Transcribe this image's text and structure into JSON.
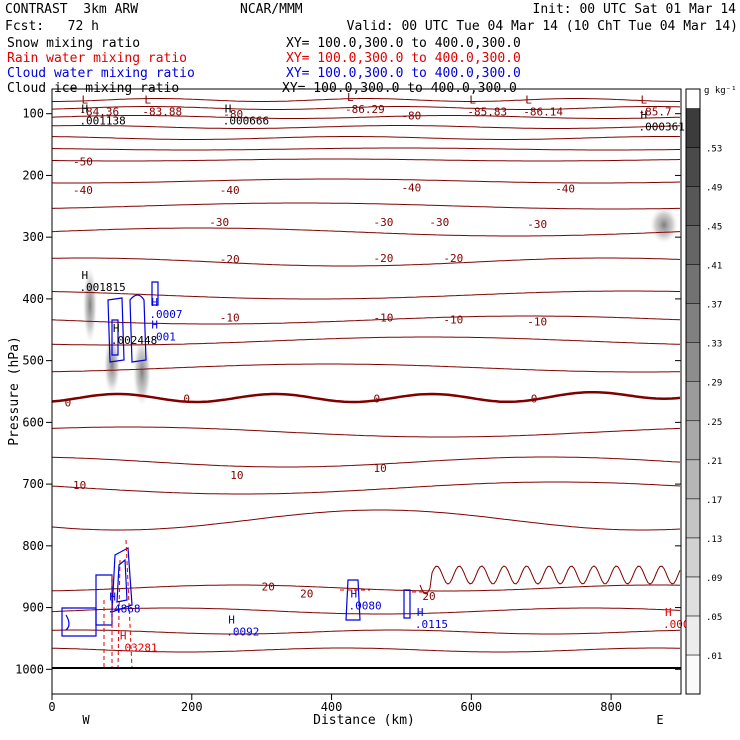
{
  "header": {
    "model": "CONTRAST  3km ARW",
    "center": "NCAR/MMM",
    "init": "Init: 00 UTC Sat 01 Mar 14",
    "fcst": "Fcst:   72 h",
    "valid": "Valid: 00 UTC Tue 04 Mar 14 (10 ChT Tue 04 Mar 14)",
    "fields": [
      {
        "label": "Snow mixing ratio",
        "xy": "XY= 100.0,300.0 to 400.0,300.0",
        "color": "#000000"
      },
      {
        "label": "Rain water mixing ratio",
        "xy": "XY= 100.0,300.0 to 400.0,300.0",
        "color": "#e00000"
      },
      {
        "label": "Cloud water mixing ratio",
        "xy": "XY= 100.0,300.0 to 400.0,300.0",
        "color": "#0000e0"
      },
      {
        "label": "Cloud ice mixing ratio",
        "xy": "XY= 100.0,300.0 to 400.0,300.0",
        "color": "#000000"
      }
    ]
  },
  "chart_data": {
    "type": "cross-section",
    "xlabel": "Distance (km)",
    "ylabel": "Pressure (hPa)",
    "xlim": [
      0,
      900
    ],
    "ylim": [
      1040,
      60
    ],
    "x_ticks": [
      0,
      200,
      400,
      600,
      800
    ],
    "y_ticks": [
      100,
      200,
      300,
      400,
      500,
      600,
      700,
      800,
      900,
      1000
    ],
    "end_labels": {
      "left": "W",
      "right": "E"
    },
    "colorbar": {
      "unit": "g kg⁻¹",
      "levels": [
        ".01",
        ".05",
        ".09",
        ".13",
        ".17",
        ".21",
        ".25",
        ".29",
        ".33",
        ".37",
        ".41",
        ".45",
        ".49",
        ".53"
      ]
    },
    "temperature_contours": [
      {
        "label": "-50",
        "x": 30,
        "p": 184
      },
      {
        "label": "-40",
        "x": 30,
        "p": 230
      },
      {
        "label": "-40",
        "x": 240,
        "p": 230
      },
      {
        "label": "-40",
        "x": 500,
        "p": 226
      },
      {
        "label": "-40",
        "x": 720,
        "p": 228
      },
      {
        "label": "-30",
        "x": 225,
        "p": 282
      },
      {
        "label": "-30",
        "x": 460,
        "p": 282
      },
      {
        "label": "-30",
        "x": 540,
        "p": 282
      },
      {
        "label": "-30",
        "x": 680,
        "p": 285
      },
      {
        "label": "-20",
        "x": 240,
        "p": 342
      },
      {
        "label": "-20",
        "x": 460,
        "p": 340
      },
      {
        "label": "-20",
        "x": 560,
        "p": 340
      },
      {
        "label": "-10",
        "x": 240,
        "p": 437
      },
      {
        "label": "-10",
        "x": 460,
        "p": 437
      },
      {
        "label": "-10",
        "x": 560,
        "p": 440
      },
      {
        "label": "-10",
        "x": 680,
        "p": 443
      },
      {
        "label": "0",
        "x": 18,
        "p": 574
      },
      {
        "label": "0",
        "x": 188,
        "p": 568
      },
      {
        "label": "0",
        "x": 460,
        "p": 568
      },
      {
        "label": "0",
        "x": 685,
        "p": 568
      },
      {
        "label": "10",
        "x": 30,
        "p": 708
      },
      {
        "label": "10",
        "x": 255,
        "p": 692
      },
      {
        "label": "10",
        "x": 460,
        "p": 680
      },
      {
        "label": "20",
        "x": 300,
        "p": 872
      },
      {
        "label": "20",
        "x": 355,
        "p": 884
      },
      {
        "label": "20",
        "x": 530,
        "p": 888
      },
      {
        "label": "-80",
        "x": 245,
        "p": 107
      },
      {
        "label": "-80",
        "x": 500,
        "p": 109
      }
    ],
    "extrema": [
      {
        "type": "L",
        "value": "-84.36",
        "x": 45,
        "p": 100,
        "color": "#800000"
      },
      {
        "type": "L",
        "value": "-83.88",
        "x": 135,
        "p": 100,
        "color": "#800000"
      },
      {
        "type": "L",
        "value": "-86.29",
        "x": 425,
        "p": 96,
        "color": "#800000"
      },
      {
        "type": "L",
        "value": "-85.83",
        "x": 600,
        "p": 100,
        "color": "#800000"
      },
      {
        "type": "L",
        "value": "-86.14",
        "x": 680,
        "p": 100,
        "color": "#800000"
      },
      {
        "type": "L",
        "value": "-85.7",
        "x": 845,
        "p": 100,
        "color": "#800000"
      },
      {
        "type": "H",
        "value": ".001138",
        "x": 45,
        "p": 114,
        "color": "#000000"
      },
      {
        "type": "H",
        "value": ".000666",
        "x": 250,
        "p": 114,
        "color": "#000000"
      },
      {
        "type": "H",
        "value": ".000361",
        "x": 845,
        "p": 124,
        "color": "#000000"
      },
      {
        "type": "H",
        "value": ".001815",
        "x": 45,
        "p": 384,
        "color": "#000000"
      },
      {
        "type": "H",
        "value": ".002448",
        "x": 90,
        "p": 470,
        "color": "#000000"
      },
      {
        "type": "H",
        "value": ".0007",
        "x": 145,
        "p": 428,
        "color": "#0000e0"
      },
      {
        "type": "H",
        "value": ".001",
        "x": 145,
        "p": 464,
        "color": "#0000e0"
      },
      {
        "type": "H",
        "value": ".4868",
        "x": 85,
        "p": 905,
        "color": "#0000e0"
      },
      {
        "type": "H",
        "value": ".03281",
        "x": 100,
        "p": 968,
        "color": "#e00000"
      },
      {
        "type": "H",
        "value": ".0092",
        "x": 255,
        "p": 942,
        "color": "#0000e0"
      },
      {
        "type": "H",
        "value": ".0080",
        "x": 430,
        "p": 900,
        "color": "#0000e0"
      },
      {
        "type": "H",
        "value": ".0115",
        "x": 525,
        "p": 930,
        "color": "#0000e0"
      },
      {
        "type": "H",
        "value": ".000",
        "x": 880,
        "p": 930,
        "color": "#e00000"
      }
    ]
  }
}
